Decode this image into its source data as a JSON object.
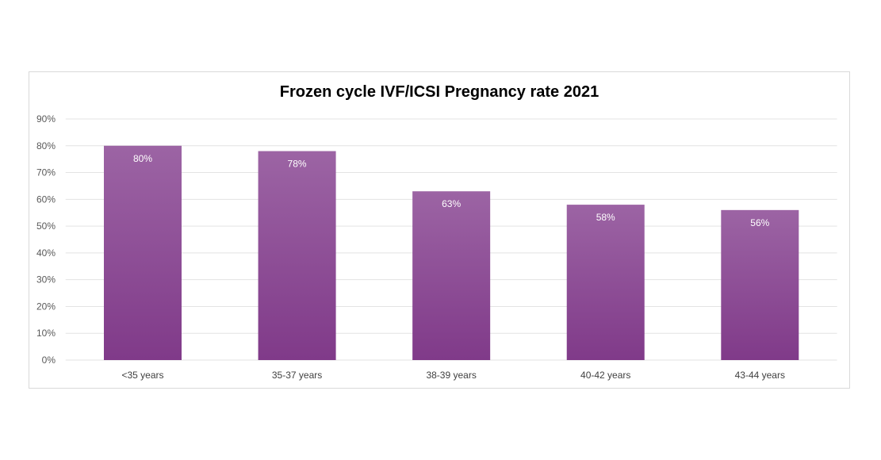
{
  "chart_data": {
    "type": "bar",
    "title": "Frozen cycle IVF/ICSI Pregnancy rate 2021",
    "categories": [
      "<35 years",
      "35-37 years",
      "38-39 years",
      "40-42 years",
      "43-44 years"
    ],
    "values": [
      80,
      78,
      63,
      58,
      56
    ],
    "data_labels": [
      "80%",
      "78%",
      "63%",
      "58%",
      "56%"
    ],
    "xlabel": "",
    "ylabel": "",
    "ylim": [
      0,
      90
    ],
    "yticks": [
      "0%",
      "10%",
      "20%",
      "30%",
      "40%",
      "50%",
      "60%",
      "70%",
      "80%",
      "90%"
    ],
    "grid": true,
    "legend": "none",
    "colors": {
      "bar_top": "#9c64a4",
      "bar_bottom": "#803a89",
      "grid": "#e3e3e3"
    }
  }
}
